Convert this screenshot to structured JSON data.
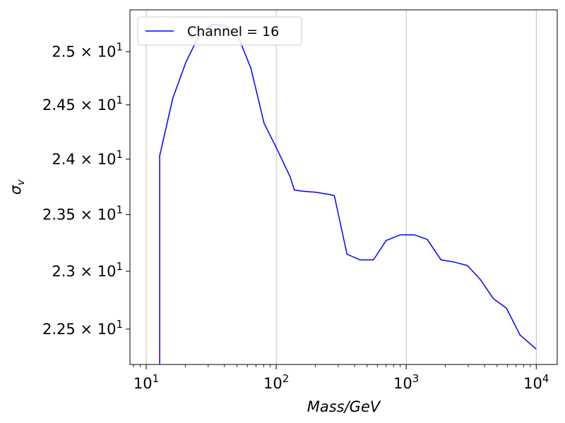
{
  "chart_data": {
    "type": "line",
    "title": "",
    "xlabel": "Mass/GeV",
    "ylabel": "σ_v",
    "x_scale": "log",
    "y_scale": "log",
    "xlim": [
      7.5,
      14500
    ],
    "ylim": [
      22.2,
      25.4
    ],
    "grid": {
      "x_major": true,
      "y": false
    },
    "legend": {
      "placement": "top-left"
    },
    "x_ticks": [
      {
        "value": 10,
        "base": "10",
        "exp": "1"
      },
      {
        "value": 100,
        "base": "10",
        "exp": "2"
      },
      {
        "value": 1000,
        "base": "10",
        "exp": "3"
      },
      {
        "value": 10000,
        "base": "10",
        "exp": "4"
      }
    ],
    "y_ticks": [
      {
        "value": 22.5,
        "mantissa": "2.25",
        "times": "×",
        "base": "10",
        "exp": "1"
      },
      {
        "value": 23.0,
        "mantissa": "2.3",
        "times": "×",
        "base": "10",
        "exp": "1"
      },
      {
        "value": 23.5,
        "mantissa": "2.35",
        "times": "×",
        "base": "10",
        "exp": "1"
      },
      {
        "value": 24.0,
        "mantissa": "2.4",
        "times": "×",
        "base": "10",
        "exp": "1"
      },
      {
        "value": 24.5,
        "mantissa": "2.45",
        "times": "×",
        "base": "10",
        "exp": "1"
      },
      {
        "value": 25.0,
        "mantissa": "2.5",
        "times": "×",
        "base": "10",
        "exp": "1"
      }
    ],
    "series": [
      {
        "name": "Channel = 16",
        "color": "#0000ff",
        "x": [
          12.7,
          12.7,
          16,
          20.2,
          25.4,
          32,
          40.3,
          50.8,
          64,
          80.6,
          101.6,
          128,
          138,
          161,
          203,
          256,
          280,
          350,
          440,
          560,
          700,
          900,
          1150,
          1450,
          1850,
          2350,
          2950,
          3700,
          4700,
          5900,
          7500,
          10000
        ],
        "y": [
          22.0,
          24.03,
          24.56,
          24.9,
          25.15,
          25.26,
          25.25,
          25.15,
          24.84,
          24.33,
          24.09,
          23.84,
          23.72,
          23.71,
          23.7,
          23.68,
          23.67,
          23.15,
          23.1,
          23.1,
          23.27,
          23.32,
          23.32,
          23.28,
          23.1,
          23.08,
          23.05,
          22.93,
          22.76,
          22.68,
          22.45,
          22.33
        ]
      }
    ]
  }
}
